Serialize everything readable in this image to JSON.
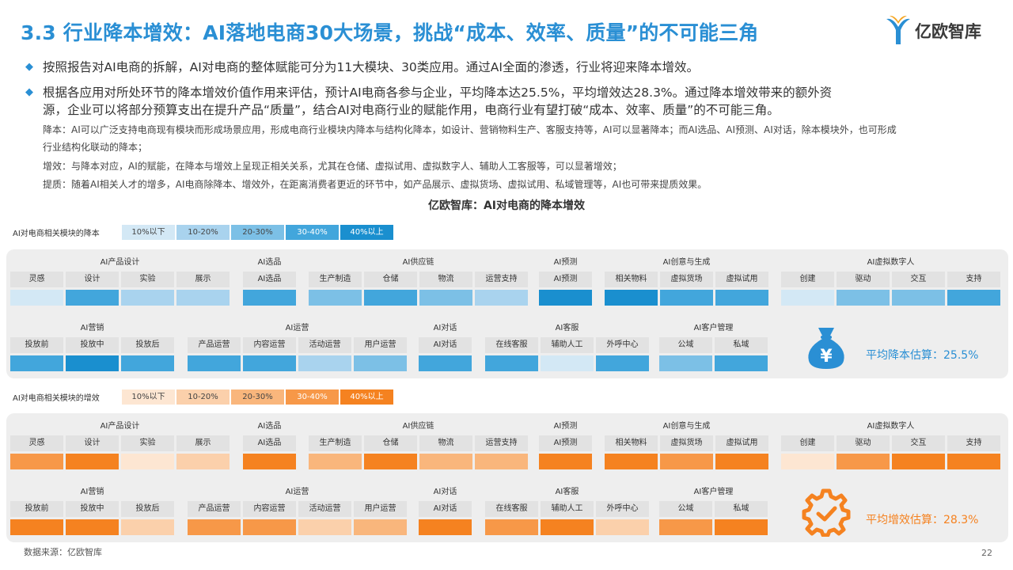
{
  "title": "3.3 行业降本增效：AI落地电商30大场景，挑战“成本、效率、质量”的不可能三角",
  "brand": "亿欧智库",
  "bullets": [
    {
      "line1": "按照报告对AI电商的拆解，AI对电商的整体赋能可分为11大模块、30类应用。通过AI全面的渗透，行业将迎来降本增效。",
      "line2": ""
    },
    {
      "line1": "根据各应用对所处环节的降本增效价值作用来评估，预计AI电商各参与企业，平均降本达25.5%，平均增效达28.3%。通过降本增效带来的额外资",
      "line2": "源，企业可以将部分预算支出在提升产品“质量”，结合AI对电商行业的赋能作用，电商行业有望打破“成本、效率、质量”的不可能三角。"
    }
  ],
  "notes": [
    "降本：AI可以广泛支持电商现有模块而形成场景应用，形成电商行业模块内降本与结构化降本，如设计、营销物料生产、客服支持等，AI可以显著降本；而AI选品、AI预测、AI对话，除本模块外，也可形成",
    "行业结构化联动的降本；",
    "增效：与降本对应，AI的赋能，在降本与增效上呈现正相关关系，尤其在仓储、虚拟试用、虚拟数字人、辅助人工客服等，可以显著增效；",
    "提质：随着AI相关人才的增多，AI电商除降本、增效外，在距离消费者更近的环节中，如产品展示、虚拟货场、虚拟试用、私域管理等，AI也可带来提质效果。"
  ],
  "chart_title": "亿欧智库：AI对电商的降本增效",
  "legend_levels": [
    "10%以下",
    "10-20%",
    "20-30%",
    "30-40%",
    "40%以上"
  ],
  "colors": {
    "blue": [
      "#d3e8f5",
      "#a9d3ee",
      "#7cc0e6",
      "#42a6dc",
      "#1a8fcf"
    ],
    "orange": [
      "#fde6d2",
      "#fbd0ab",
      "#f9b67c",
      "#f79848",
      "#f58220"
    ],
    "accent_blue": "#2a8fd4",
    "accent_orange": "#f58220"
  },
  "cost": {
    "legend_label": "AI对电商相关模块的降本",
    "summary": "平均降本估算：25.5%",
    "summary_icon": "money-bag-yuan-icon",
    "groups": [
      {
        "name": "AI产品设计",
        "items": [
          {
            "label": "灵感",
            "level": 0
          },
          {
            "label": "设计",
            "level": 3
          },
          {
            "label": "实验",
            "level": 1
          },
          {
            "label": "展示",
            "level": 1
          }
        ]
      },
      {
        "name": "AI选品",
        "items": [
          {
            "label": "AI选品",
            "level": 3
          }
        ]
      },
      {
        "name": "AI供应链",
        "items": [
          {
            "label": "生产制造",
            "level": 2
          },
          {
            "label": "仓储",
            "level": 3
          },
          {
            "label": "物流",
            "level": 2
          },
          {
            "label": "运营支持",
            "level": 1
          }
        ]
      },
      {
        "name": "AI预测",
        "items": [
          {
            "label": "AI预测",
            "level": 4
          }
        ]
      },
      {
        "name": "AI创意与生成",
        "items": [
          {
            "label": "相关物料",
            "level": 4
          },
          {
            "label": "虚拟货场",
            "level": 3
          },
          {
            "label": "虚拟试用",
            "level": 3
          }
        ]
      },
      {
        "name": "AI虚拟数字人",
        "items": [
          {
            "label": "创建",
            "level": 0
          },
          {
            "label": "驱动",
            "level": 2
          },
          {
            "label": "交互",
            "level": 2
          },
          {
            "label": "支持",
            "level": 3
          }
        ]
      },
      {
        "name": "AI营销",
        "items": [
          {
            "label": "投放前",
            "level": 3
          },
          {
            "label": "投放中",
            "level": 4
          },
          {
            "label": "投放后",
            "level": 3
          }
        ]
      },
      {
        "name": "AI运营",
        "items": [
          {
            "label": "产品运营",
            "level": 3
          },
          {
            "label": "内容运营",
            "level": 3
          },
          {
            "label": "活动运营",
            "level": 1
          },
          {
            "label": "用户运营",
            "level": 2
          }
        ]
      },
      {
        "name": "AI对话",
        "items": [
          {
            "label": "AI对话",
            "level": 3
          }
        ]
      },
      {
        "name": "AI客服",
        "items": [
          {
            "label": "在线客服",
            "level": 3
          },
          {
            "label": "辅助人工",
            "level": 0
          },
          {
            "label": "外呼中心",
            "level": 3
          }
        ]
      },
      {
        "name": "AI客户管理",
        "items": [
          {
            "label": "公域",
            "level": 2
          },
          {
            "label": "私域",
            "level": 3
          }
        ]
      }
    ]
  },
  "efficiency": {
    "legend_label": "AI对电商相关模块的增效",
    "summary": "平均增效估算：28.3%",
    "summary_icon": "gear-check-icon",
    "groups": [
      {
        "name": "AI产品设计",
        "items": [
          {
            "label": "灵感",
            "level": 3
          },
          {
            "label": "设计",
            "level": 4
          },
          {
            "label": "实验",
            "level": 0
          },
          {
            "label": "展示",
            "level": 1
          }
        ]
      },
      {
        "name": "AI选品",
        "items": [
          {
            "label": "AI选品",
            "level": 4
          }
        ]
      },
      {
        "name": "AI供应链",
        "items": [
          {
            "label": "生产制造",
            "level": 2
          },
          {
            "label": "仓储",
            "level": 4
          },
          {
            "label": "物流",
            "level": 2
          },
          {
            "label": "运营支持",
            "level": 2
          }
        ]
      },
      {
        "name": "AI预测",
        "items": [
          {
            "label": "AI预测",
            "level": 4
          }
        ]
      },
      {
        "name": "AI创意与生成",
        "items": [
          {
            "label": "相关物料",
            "level": 4
          },
          {
            "label": "虚拟货场",
            "level": 3
          },
          {
            "label": "虚拟试用",
            "level": 4
          }
        ]
      },
      {
        "name": "AI虚拟数字人",
        "items": [
          {
            "label": "创建",
            "level": 0
          },
          {
            "label": "驱动",
            "level": 3
          },
          {
            "label": "交互",
            "level": 4
          },
          {
            "label": "支持",
            "level": 4
          }
        ]
      },
      {
        "name": "AI营销",
        "items": [
          {
            "label": "投放前",
            "level": 4
          },
          {
            "label": "投放中",
            "level": 4
          },
          {
            "label": "投放后",
            "level": 1
          }
        ]
      },
      {
        "name": "AI运营",
        "items": [
          {
            "label": "产品运营",
            "level": 3
          },
          {
            "label": "内容运营",
            "level": 3
          },
          {
            "label": "活动运营",
            "level": 1
          },
          {
            "label": "用户运营",
            "level": 2
          }
        ]
      },
      {
        "name": "AI对话",
        "items": [
          {
            "label": "AI对话",
            "level": 4
          }
        ]
      },
      {
        "name": "AI客服",
        "items": [
          {
            "label": "在线客服",
            "level": 3
          },
          {
            "label": "辅助人工",
            "level": 4
          },
          {
            "label": "外呼中心",
            "level": 1
          }
        ]
      },
      {
        "name": "AI客户管理",
        "items": [
          {
            "label": "公域",
            "level": 3
          },
          {
            "label": "私域",
            "level": 4
          }
        ]
      }
    ]
  },
  "source": "数据来源：亿欧智库",
  "page_number": "22"
}
